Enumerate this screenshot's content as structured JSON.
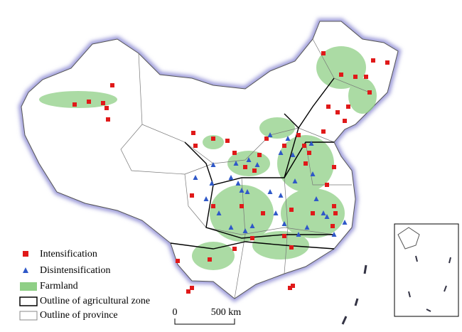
{
  "legend": {
    "items": [
      {
        "label": "Intensification"
      },
      {
        "label": "Disintensification"
      },
      {
        "label": "Farmland"
      },
      {
        "label": "Outline of agricultural zone"
      },
      {
        "label": "Outline of province"
      }
    ]
  },
  "scale_bar": {
    "start": "0",
    "end": "500 km"
  }
}
